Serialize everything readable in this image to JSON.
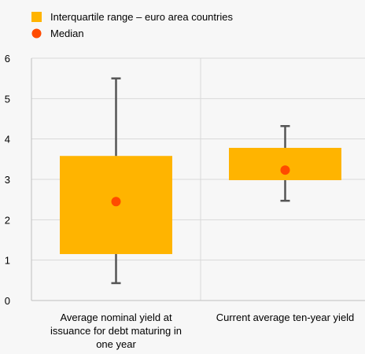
{
  "chart_data": {
    "type": "box",
    "legend": [
      {
        "name": "Interquartile range – euro area countries",
        "marker": "square",
        "color": "#FFB400"
      },
      {
        "name": "Median",
        "marker": "circle",
        "color": "#FF4B00"
      }
    ],
    "legend_position": "top-left",
    "ylim": [
      0,
      6
    ],
    "yticks": [
      "0",
      "1",
      "2",
      "3",
      "4",
      "5",
      "6"
    ],
    "grid": true,
    "categories": [
      "Average nominal yield at issuance for debt maturing in one year",
      "Current average ten-year yield"
    ],
    "category_lines": [
      [
        "Average nominal yield at",
        "issuance for debt maturing in",
        "one year"
      ],
      [
        "Current average ten-year yield"
      ]
    ],
    "series": [
      {
        "category": "Average nominal yield at issuance for debt maturing in one year",
        "min": 0.43,
        "q1": 1.15,
        "median": 2.45,
        "q3": 3.58,
        "max": 5.5
      },
      {
        "category": "Current average ten-year yield",
        "min": 2.47,
        "q1": 2.98,
        "median": 3.23,
        "q3": 3.78,
        "max": 4.32
      }
    ],
    "colors": {
      "box": "#FFB400",
      "median": "#FF4B00",
      "whisker": "#555555",
      "grid": "#d9d9d9",
      "axis": "#bfbfbf"
    }
  }
}
